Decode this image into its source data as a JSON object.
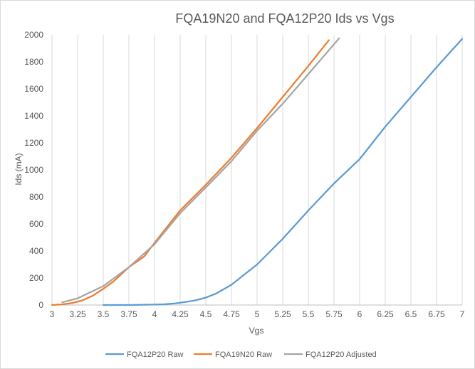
{
  "chart_data": {
    "type": "line",
    "title": "FQA19N20 and FQA12P20 Ids vs Vgs",
    "xlabel": "Vgs",
    "ylabel": "Ids (mA)",
    "xlim": [
      3,
      7
    ],
    "ylim": [
      0,
      2000
    ],
    "x_ticks": [
      3,
      3.25,
      3.5,
      3.75,
      4,
      4.25,
      4.5,
      4.75,
      5,
      5.25,
      5.5,
      5.75,
      6,
      6.25,
      6.5,
      6.75,
      7
    ],
    "x_tick_labels": [
      "3",
      "3.25",
      "3.5",
      "3.75",
      "4",
      "4.25",
      "4.5",
      "4.75",
      "5",
      "5.25",
      "5.5",
      "5.75",
      "6",
      "6.25",
      "6.5",
      "6.75",
      "7"
    ],
    "y_ticks": [
      0,
      200,
      400,
      600,
      800,
      1000,
      1200,
      1400,
      1600,
      1800,
      2000
    ],
    "y_tick_labels": [
      "0",
      "200",
      "400",
      "600",
      "800",
      "1000",
      "1200",
      "1400",
      "1600",
      "1800",
      "2000"
    ],
    "grid": "vertical",
    "legend_position": "bottom",
    "series": [
      {
        "name": "FQA12P20 Raw",
        "color": "#5b9bd5",
        "x": [
          3.5,
          3.75,
          4.0,
          4.1,
          4.2,
          4.3,
          4.4,
          4.5,
          4.6,
          4.75,
          4.9,
          5.0,
          5.25,
          5.5,
          5.75,
          6.0,
          6.25,
          6.5,
          6.75,
          7.0
        ],
        "y": [
          0,
          0,
          3,
          6,
          12,
          22,
          35,
          55,
          85,
          150,
          240,
          300,
          490,
          700,
          900,
          1080,
          1320,
          1540,
          1760,
          1970
        ]
      },
      {
        "name": "FQA19N20 Raw",
        "color": "#ed7d31",
        "x": [
          3.0,
          3.1,
          3.2,
          3.3,
          3.4,
          3.5,
          3.6,
          3.75,
          3.9,
          4.0,
          4.25,
          4.5,
          4.75,
          5.0,
          5.25,
          5.5,
          5.7
        ],
        "y": [
          0,
          5,
          15,
          35,
          70,
          120,
          175,
          280,
          360,
          460,
          700,
          890,
          1090,
          1310,
          1540,
          1770,
          1960
        ]
      },
      {
        "name": "FQA12P20 Adjusted",
        "color": "#a5a5a5",
        "x": [
          3.1,
          3.25,
          3.5,
          3.75,
          4.0,
          4.25,
          4.5,
          4.75,
          5.0,
          5.25,
          5.5,
          5.75,
          5.8
        ],
        "y": [
          20,
          50,
          140,
          280,
          450,
          680,
          870,
          1065,
          1290,
          1490,
          1710,
          1930,
          1975
        ]
      }
    ]
  }
}
